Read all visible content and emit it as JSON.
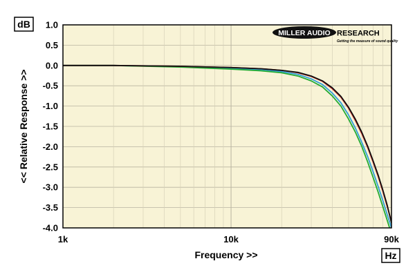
{
  "chart_data": {
    "type": "line",
    "title": "",
    "xlabel": "Frequency >>",
    "ylabel": "<< Relative Response >>",
    "y_unit": "dB",
    "x_unit": "Hz",
    "x_scale": "log",
    "xlim": [
      1000,
      90000
    ],
    "ylim": [
      -4.0,
      1.0
    ],
    "grid": true,
    "x_tick_labels": [
      {
        "value": 1000,
        "label": "1k"
      },
      {
        "value": 10000,
        "label": "10k"
      },
      {
        "value": 90000,
        "label": "90k"
      }
    ],
    "y_ticks": [
      1.0,
      0.5,
      0.0,
      -0.5,
      -1.0,
      -1.5,
      -2.0,
      -2.5,
      -3.0,
      -3.5,
      -4.0
    ],
    "y_tick_labels": [
      "1.0",
      "0.5",
      "0.0",
      "-0.5",
      "-1.0",
      "-1.5",
      "-2.0",
      "-2.5",
      "-3.0",
      "-3.5",
      "-4.0"
    ],
    "series": [
      {
        "color": "#2e9fd6",
        "x": [
          1000,
          2000,
          5000,
          10000,
          15000,
          20000,
          25000,
          30000,
          35000,
          40000,
          45000,
          50000,
          55000,
          60000,
          65000,
          70000,
          75000,
          80000,
          85000,
          90000
        ],
        "y": [
          0.0,
          0.0,
          -0.03,
          -0.07,
          -0.1,
          -0.15,
          -0.22,
          -0.33,
          -0.47,
          -0.68,
          -0.92,
          -1.22,
          -1.55,
          -1.9,
          -2.25,
          -2.62,
          -2.98,
          -3.33,
          -3.68,
          -4.0
        ]
      },
      {
        "color": "#22aa33",
        "x": [
          1000,
          2000,
          5000,
          10000,
          15000,
          20000,
          25000,
          30000,
          35000,
          40000,
          45000,
          50000,
          55000,
          60000,
          65000,
          70000,
          75000,
          80000,
          85000,
          90000
        ],
        "y": [
          0.0,
          0.0,
          -0.04,
          -0.09,
          -0.13,
          -0.18,
          -0.26,
          -0.38,
          -0.53,
          -0.75,
          -1.0,
          -1.32,
          -1.65,
          -2.0,
          -2.38,
          -2.76,
          -3.12,
          -3.48,
          -3.82,
          -4.15
        ]
      },
      {
        "color": "#cc2222",
        "x": [
          1000,
          2000,
          5000,
          10000,
          15000,
          20000,
          25000,
          30000,
          35000,
          40000,
          45000,
          50000,
          55000,
          60000,
          65000,
          70000,
          75000,
          80000,
          85000,
          90000
        ],
        "y": [
          0.0,
          0.0,
          -0.02,
          -0.05,
          -0.08,
          -0.12,
          -0.18,
          -0.27,
          -0.39,
          -0.57,
          -0.78,
          -1.05,
          -1.36,
          -1.68,
          -2.02,
          -2.38,
          -2.73,
          -3.1,
          -3.48,
          -3.85
        ]
      },
      {
        "color": "#111111",
        "x": [
          1000,
          2000,
          5000,
          10000,
          15000,
          20000,
          25000,
          30000,
          35000,
          40000,
          45000,
          50000,
          55000,
          60000,
          65000,
          70000,
          75000,
          80000,
          85000,
          90000
        ],
        "y": [
          0.0,
          0.0,
          -0.02,
          -0.05,
          -0.08,
          -0.12,
          -0.17,
          -0.26,
          -0.38,
          -0.55,
          -0.76,
          -1.03,
          -1.33,
          -1.65,
          -1.99,
          -2.35,
          -2.7,
          -3.07,
          -3.45,
          -3.88
        ]
      }
    ]
  },
  "branding": {
    "logo_main": "MILLER AUDIO",
    "logo_secondary": "RESEARCH",
    "tagline": "Getting the measure of sound quality"
  },
  "colors": {
    "plot_background": "#f8f3d6",
    "grid_major": "#b8b3a0",
    "grid_minor": "#d7d1b8",
    "logo_oval": "#111111"
  }
}
